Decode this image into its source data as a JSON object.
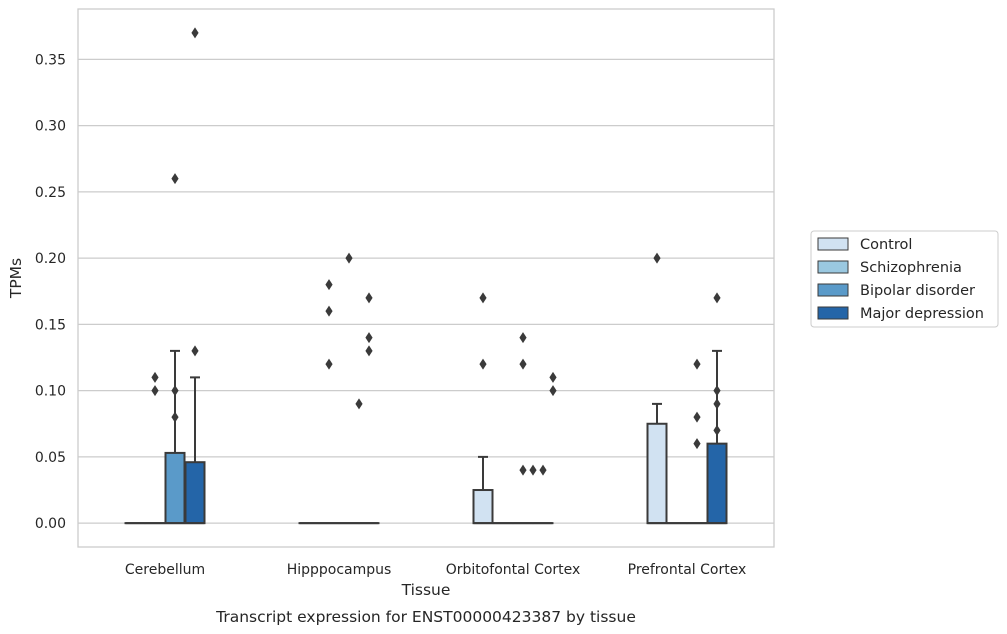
{
  "chart_data": {
    "type": "box",
    "title": "Transcript expression for ENST00000423387 by tissue",
    "xlabel": "Tissue",
    "ylabel": "TPMs",
    "ylim": [
      -0.018,
      0.388
    ],
    "yticks": [
      0.0,
      0.05,
      0.1,
      0.15,
      0.2,
      0.25,
      0.3,
      0.35
    ],
    "ytick_labels": [
      "0.00",
      "0.05",
      "0.10",
      "0.15",
      "0.20",
      "0.25",
      "0.30",
      "0.35"
    ],
    "grid": true,
    "legend_position": "center-right outside",
    "categories": [
      "Cerebellum",
      "Hipppocampus",
      "Orbitofontal Cortex",
      "Prefrontal Cortex"
    ],
    "series": [
      {
        "name": "Control",
        "color": "#d1e2f2",
        "boxes": [
          {
            "q1": 0,
            "median": 0,
            "q3": 0,
            "whisker_low": 0,
            "whisker_high": 0,
            "outliers": []
          },
          {
            "q1": 0,
            "median": 0,
            "q3": 0,
            "whisker_low": 0,
            "whisker_high": 0,
            "outliers": []
          },
          {
            "q1": 0,
            "median": 0,
            "q3": 0.025,
            "whisker_low": 0,
            "whisker_high": 0.05,
            "outliers": [
              0.12,
              0.17
            ]
          },
          {
            "q1": 0,
            "median": 0,
            "q3": 0.075,
            "whisker_low": 0,
            "whisker_high": 0.09,
            "outliers": [
              0.2
            ]
          }
        ]
      },
      {
        "name": "Schizophrenia",
        "color": "#9ac8e0",
        "boxes": [
          {
            "q1": 0,
            "median": 0,
            "q3": 0,
            "whisker_low": 0,
            "whisker_high": 0,
            "outliers": [
              0.1,
              0.11
            ]
          },
          {
            "q1": 0,
            "median": 0,
            "q3": 0,
            "whisker_low": 0,
            "whisker_high": 0,
            "outliers": [
              0.12,
              0.16,
              0.18
            ]
          },
          {
            "q1": 0,
            "median": 0,
            "q3": 0,
            "whisker_low": 0,
            "whisker_high": 0,
            "outliers": []
          },
          {
            "q1": 0,
            "median": 0,
            "q3": 0,
            "whisker_low": 0,
            "whisker_high": 0,
            "outliers": []
          }
        ]
      },
      {
        "name": "Bipolar disorder",
        "color": "#5a9ac9",
        "boxes": [
          {
            "q1": 0,
            "median": 0,
            "q3": 0.053,
            "whisker_low": 0,
            "whisker_high": 0.13,
            "outliers": [
              0.08,
              0.1,
              0.26
            ]
          },
          {
            "q1": 0,
            "median": 0,
            "q3": 0,
            "whisker_low": 0,
            "whisker_high": 0,
            "outliers": [
              0.2
            ]
          },
          {
            "q1": 0,
            "median": 0,
            "q3": 0,
            "whisker_low": 0,
            "whisker_high": 0,
            "outliers": [
              0.04,
              0.12,
              0.14
            ]
          },
          {
            "q1": 0,
            "median": 0,
            "q3": 0,
            "whisker_low": 0,
            "whisker_high": 0,
            "outliers": [
              0.06,
              0.08,
              0.12
            ]
          }
        ]
      },
      {
        "name": "Major depression",
        "color": "#2465a8",
        "boxes": [
          {
            "q1": 0,
            "median": 0,
            "q3": 0.046,
            "whisker_low": 0,
            "whisker_high": 0.11,
            "outliers": [
              0.13,
              0.37
            ]
          },
          {
            "q1": 0,
            "median": 0,
            "q3": 0,
            "whisker_low": 0,
            "whisker_high": 0,
            "outliers": [
              0.13,
              0.14,
              0.17
            ]
          },
          {
            "q1": 0,
            "median": 0,
            "q3": 0,
            "whisker_low": 0,
            "whisker_high": 0,
            "outliers": [
              0.04
            ]
          },
          {
            "q1": 0,
            "median": 0,
            "q3": 0.06,
            "whisker_low": 0,
            "whisker_high": 0.13,
            "outliers": [
              0.07,
              0.09,
              0.1,
              0.17
            ]
          }
        ]
      }
    ],
    "extra_outliers": [
      {
        "category": 1,
        "x_offset_series": 2.5,
        "values": [
          0.09
        ]
      },
      {
        "category": 2,
        "x_offset_series": 2.5,
        "values": [
          0.04
        ]
      },
      {
        "category": 2,
        "x_offset_series": 3.5,
        "values": [
          0.1,
          0.11
        ]
      }
    ]
  }
}
